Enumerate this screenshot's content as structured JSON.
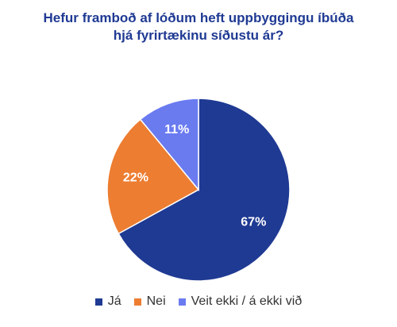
{
  "chart_data": {
    "type": "pie",
    "title_lines": [
      "Hefur framboð af lóðum heft uppbyggingu íbúða",
      "hjá fyrirtækinu síðustu ár?"
    ],
    "categories": [
      "Já",
      "Nei",
      "Veit ekki / á ekki við"
    ],
    "values": [
      67,
      22,
      11
    ],
    "labels": [
      "67%",
      "22%",
      "11%"
    ],
    "colors": [
      "#1f3a93",
      "#ed7d31",
      "#6a7bf0"
    ],
    "legend": "bottom"
  }
}
